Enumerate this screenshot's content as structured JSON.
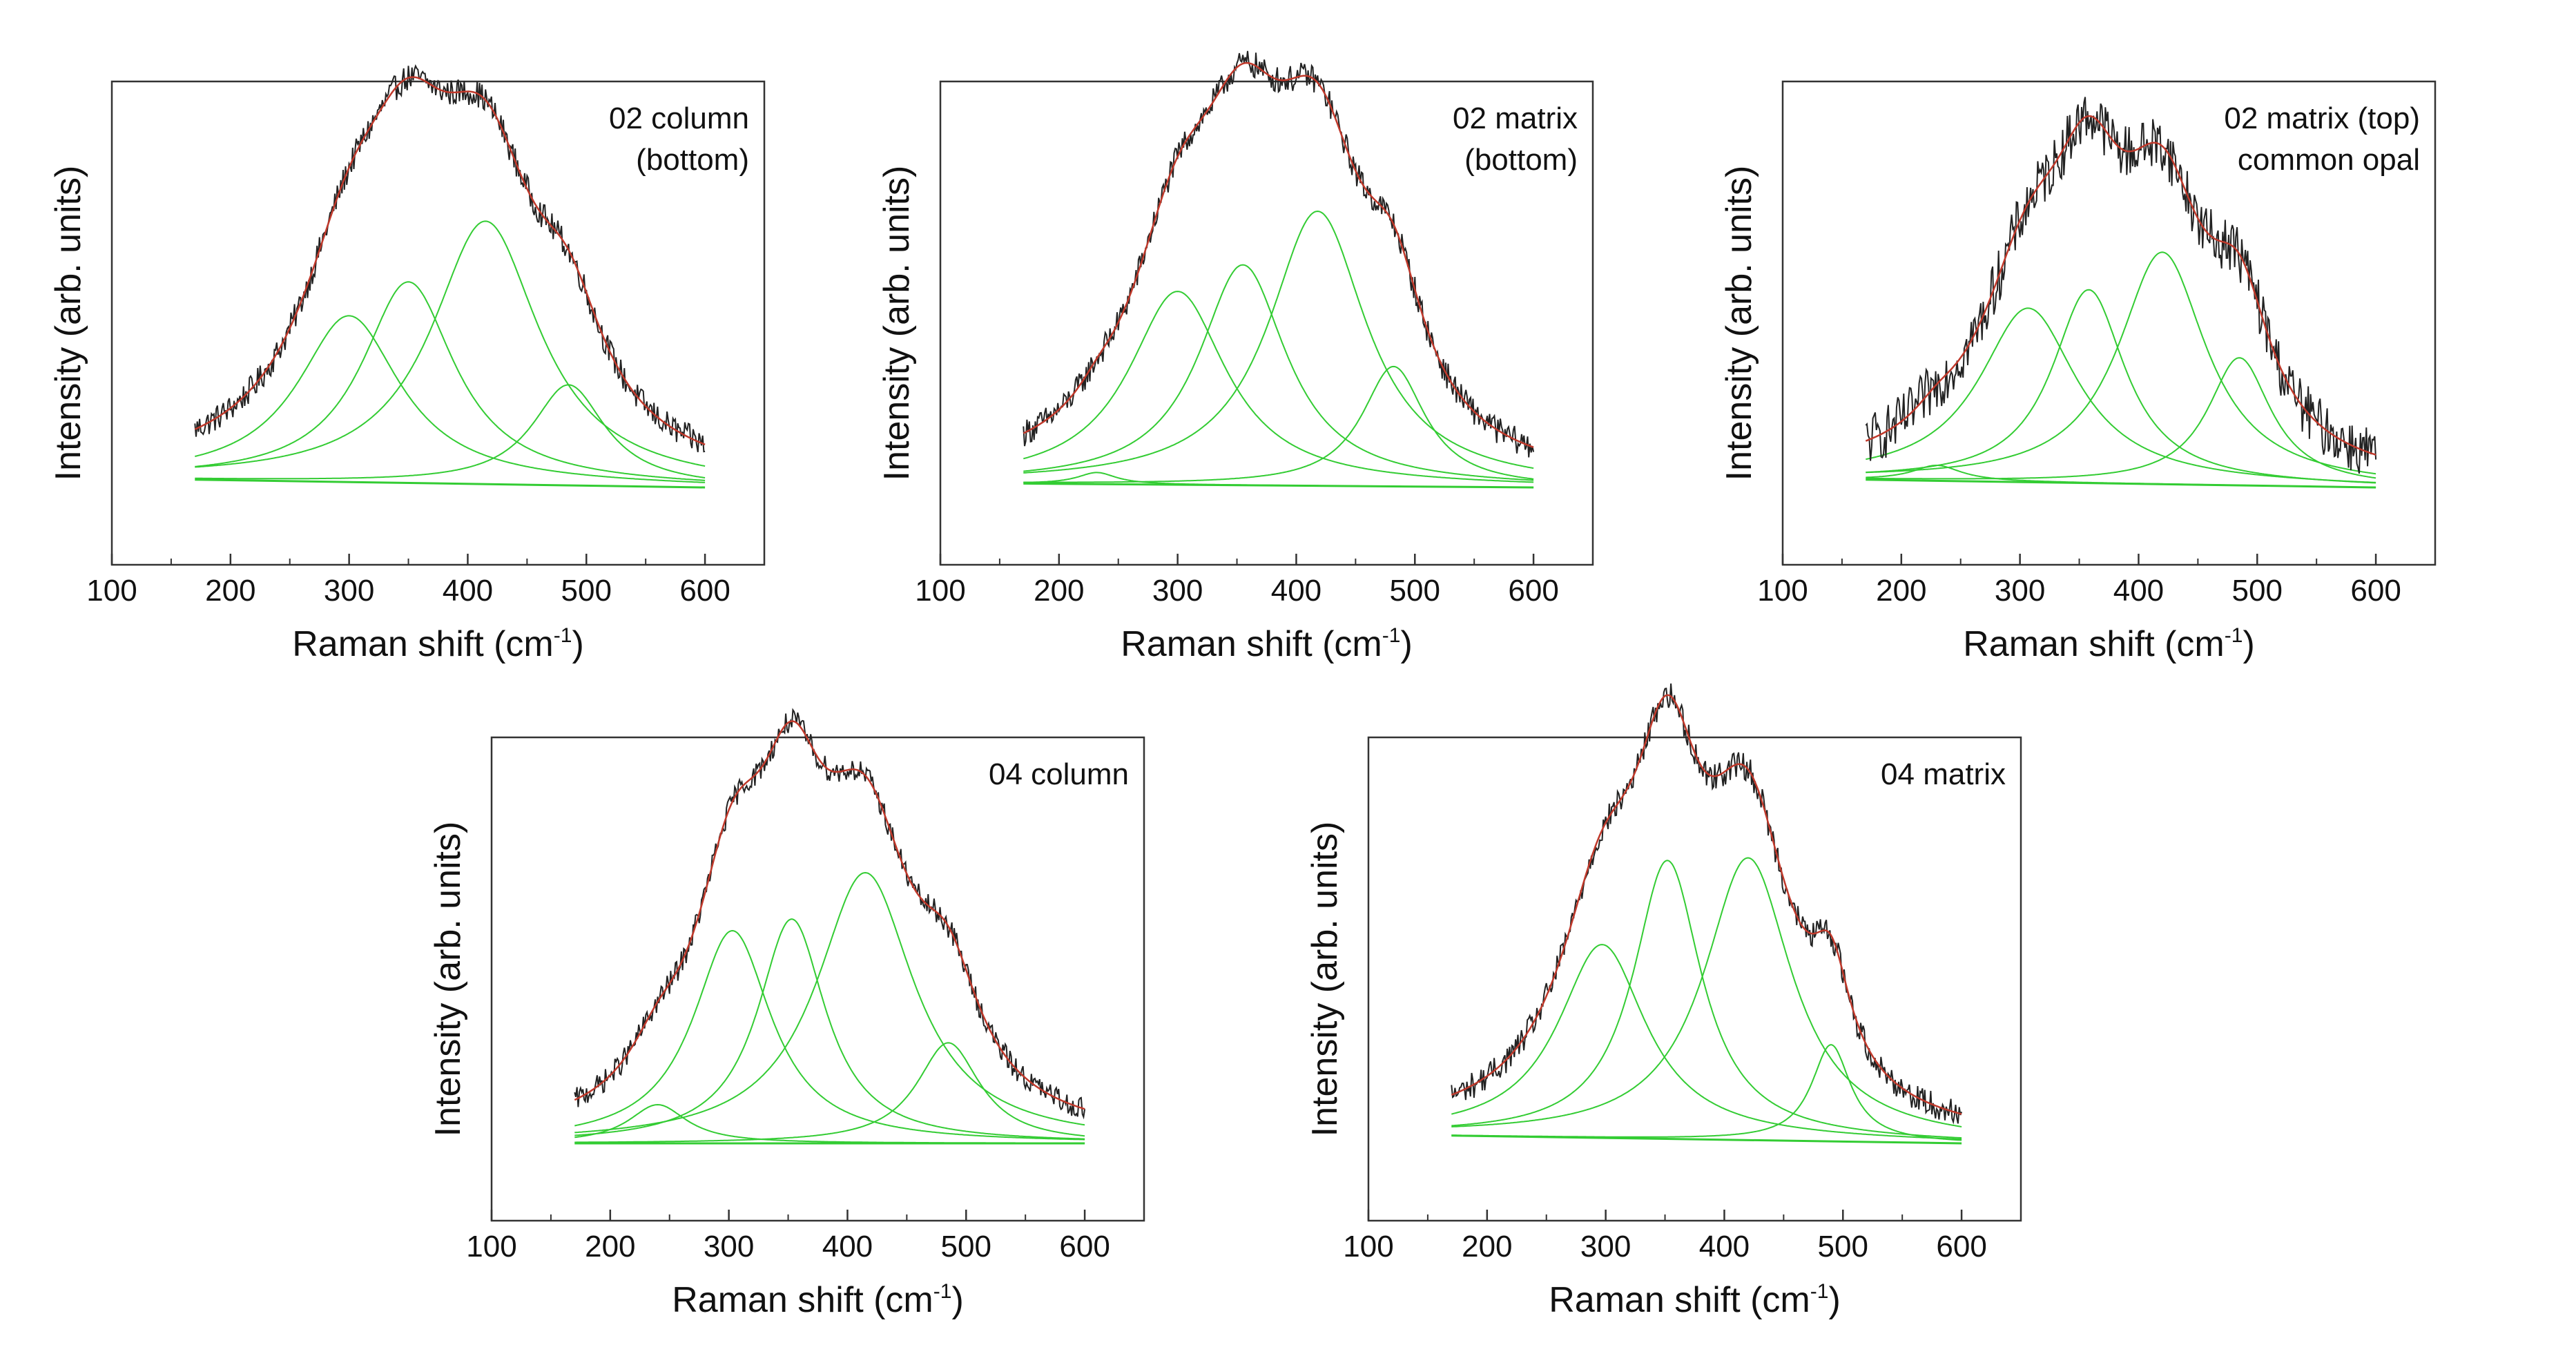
{
  "figure": {
    "colors": {
      "measured": "#222222",
      "cumulative_fit": "#c0392b",
      "components": "#33cc33",
      "frame": "#333333"
    }
  },
  "chart_data": [
    {
      "type": "line",
      "id": "p1",
      "annotation_lines": [
        "02 column",
        "(bottom)"
      ],
      "xlabel": "Raman shift (cm",
      "xlabel_sup": "-1",
      "xlabel_close": ")",
      "ylabel": "Intensity (arb. units)",
      "xlim": [
        100,
        650
      ],
      "ylim": [
        -0.2,
        1.05
      ],
      "x_ticks": [
        "100",
        "200",
        "300",
        "400",
        "500",
        "600"
      ],
      "baseline": [
        [
          170,
          0.02
        ],
        [
          600,
          0.0
        ]
      ],
      "peaks": [
        {
          "center": 300,
          "amplitude": 0.43,
          "fwhm": 105
        },
        {
          "center": 350,
          "amplitude": 0.52,
          "fwhm": 95
        },
        {
          "center": 415,
          "amplitude": 0.68,
          "fwhm": 110
        },
        {
          "center": 485,
          "amplitude": 0.26,
          "fwhm": 75
        }
      ],
      "noise": 0.035
    },
    {
      "type": "line",
      "id": "p2",
      "annotation_lines": [
        "02 matrix",
        "(bottom)"
      ],
      "xlabel": "Raman shift (cm",
      "xlabel_sup": "-1",
      "xlabel_close": ")",
      "ylabel": "Intensity (arb. units)",
      "xlim": [
        100,
        650
      ],
      "ylim": [
        -0.2,
        1.05
      ],
      "x_ticks": [
        "100",
        "200",
        "300",
        "400",
        "500",
        "600"
      ],
      "baseline": [
        [
          170,
          0.01
        ],
        [
          600,
          0.0
        ]
      ],
      "peaks": [
        {
          "center": 232,
          "amplitude": 0.03,
          "fwhm": 40
        },
        {
          "center": 300,
          "amplitude": 0.5,
          "fwhm": 100
        },
        {
          "center": 355,
          "amplitude": 0.57,
          "fwhm": 90
        },
        {
          "center": 418,
          "amplitude": 0.71,
          "fwhm": 100
        },
        {
          "center": 482,
          "amplitude": 0.31,
          "fwhm": 65
        }
      ],
      "noise": 0.035
    },
    {
      "type": "line",
      "id": "p3",
      "annotation_lines": [
        "02 matrix (top)",
        "common opal"
      ],
      "xlabel": "Raman shift (cm",
      "xlabel_sup": "-1",
      "xlabel_close": ")",
      "ylabel": "Intensity (arb. units)",
      "xlim": [
        100,
        650
      ],
      "ylim": [
        -0.2,
        1.05
      ],
      "x_ticks": [
        "100",
        "200",
        "300",
        "400",
        "500",
        "600"
      ],
      "baseline": [
        [
          170,
          0.02
        ],
        [
          600,
          0.0
        ]
      ],
      "peaks": [
        {
          "center": 230,
          "amplitude": 0.04,
          "fwhm": 50
        },
        {
          "center": 307,
          "amplitude": 0.45,
          "fwhm": 100
        },
        {
          "center": 358,
          "amplitude": 0.5,
          "fwhm": 75
        },
        {
          "center": 420,
          "amplitude": 0.6,
          "fwhm": 90
        },
        {
          "center": 485,
          "amplitude": 0.33,
          "fwhm": 65
        }
      ],
      "noise": 0.07
    },
    {
      "type": "line",
      "id": "p4",
      "annotation_lines": [
        "04 column"
      ],
      "xlabel": "Raman shift (cm",
      "xlabel_sup": "-1",
      "xlabel_close": ")",
      "ylabel": "Intensity (arb. units)",
      "xlim": [
        100,
        650
      ],
      "ylim": [
        -0.2,
        1.05
      ],
      "x_ticks": [
        "100",
        "200",
        "300",
        "400",
        "500",
        "600"
      ],
      "baseline": [
        [
          170,
          0.0
        ],
        [
          600,
          0.0
        ]
      ],
      "peaks": [
        {
          "center": 240,
          "amplitude": 0.1,
          "fwhm": 60
        },
        {
          "center": 303,
          "amplitude": 0.55,
          "fwhm": 80
        },
        {
          "center": 353,
          "amplitude": 0.58,
          "fwhm": 70
        },
        {
          "center": 415,
          "amplitude": 0.7,
          "fwhm": 100
        },
        {
          "center": 485,
          "amplitude": 0.26,
          "fwhm": 65
        }
      ],
      "noise": 0.03
    },
    {
      "type": "line",
      "id": "p5",
      "annotation_lines": [
        "04 matrix"
      ],
      "xlabel": "Raman shift (cm",
      "xlabel_sup": "-1",
      "xlabel_close": ")",
      "ylabel": "Intensity (arb. units)",
      "xlim": [
        100,
        650
      ],
      "ylim": [
        -0.2,
        1.05
      ],
      "x_ticks": [
        "100",
        "200",
        "300",
        "400",
        "500",
        "600"
      ],
      "baseline": [
        [
          170,
          0.02
        ],
        [
          600,
          0.0
        ]
      ],
      "peaks": [
        {
          "center": 297,
          "amplitude": 0.5,
          "fwhm": 90
        },
        {
          "center": 352,
          "amplitude": 0.72,
          "fwhm": 70
        },
        {
          "center": 420,
          "amplitude": 0.73,
          "fwhm": 90
        },
        {
          "center": 490,
          "amplitude": 0.25,
          "fwhm": 40
        }
      ],
      "noise": 0.035
    }
  ]
}
